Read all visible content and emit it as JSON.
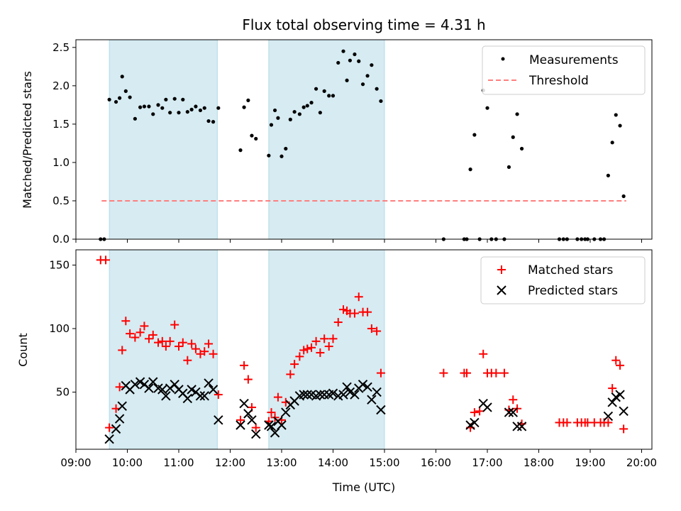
{
  "chart_data": [
    {
      "type": "scatter",
      "title": "Flux total observing time = 4.31 h",
      "xlabel": "",
      "ylabel": "Matched/Predicted stars",
      "xlim_hours": [
        9.0,
        20.2
      ],
      "ylim": [
        0,
        2.6
      ],
      "xticks": [
        9,
        10,
        11,
        12,
        13,
        14,
        15,
        16,
        17,
        18,
        19,
        20
      ],
      "yticks": [
        0.0,
        0.5,
        1.0,
        1.5,
        2.0,
        2.5
      ],
      "ytick_labels": [
        "0.0",
        "0.5",
        "1.0",
        "1.5",
        "2.0",
        "2.5"
      ],
      "shaded_intervals_hours": [
        [
          9.65,
          11.75
        ],
        [
          12.75,
          15.0
        ]
      ],
      "shade_color": "#add8e6",
      "legend_position": "top-right",
      "threshold": {
        "name": "Threshold",
        "value": 0.5,
        "x_hours": [
          9.5,
          19.7
        ],
        "color": "#ff7f7f"
      },
      "series": [
        {
          "name": "Measurements",
          "marker": "dot",
          "color": "#000000",
          "points": [
            [
              9.48,
              0.0
            ],
            [
              9.55,
              0.0
            ],
            [
              9.65,
              1.82
            ],
            [
              9.78,
              1.79
            ],
            [
              9.85,
              1.84
            ],
            [
              9.9,
              2.12
            ],
            [
              9.97,
              1.93
            ],
            [
              10.05,
              1.85
            ],
            [
              10.15,
              1.57
            ],
            [
              10.25,
              1.72
            ],
            [
              10.33,
              1.73
            ],
            [
              10.42,
              1.73
            ],
            [
              10.5,
              1.63
            ],
            [
              10.6,
              1.75
            ],
            [
              10.68,
              1.71
            ],
            [
              10.75,
              1.82
            ],
            [
              10.83,
              1.65
            ],
            [
              10.92,
              1.83
            ],
            [
              11.0,
              1.65
            ],
            [
              11.08,
              1.82
            ],
            [
              11.17,
              1.66
            ],
            [
              11.25,
              1.69
            ],
            [
              11.33,
              1.73
            ],
            [
              11.42,
              1.68
            ],
            [
              11.5,
              1.71
            ],
            [
              11.58,
              1.54
            ],
            [
              11.67,
              1.53
            ],
            [
              11.77,
              1.71
            ],
            [
              12.2,
              1.16
            ],
            [
              12.27,
              1.72
            ],
            [
              12.35,
              1.81
            ],
            [
              12.42,
              1.35
            ],
            [
              12.5,
              1.31
            ],
            [
              12.75,
              1.09
            ],
            [
              12.8,
              1.49
            ],
            [
              12.87,
              1.68
            ],
            [
              12.93,
              1.58
            ],
            [
              13.0,
              1.08
            ],
            [
              13.08,
              1.18
            ],
            [
              13.17,
              1.56
            ],
            [
              13.25,
              1.66
            ],
            [
              13.35,
              1.63
            ],
            [
              13.43,
              1.72
            ],
            [
              13.5,
              1.74
            ],
            [
              13.58,
              1.78
            ],
            [
              13.67,
              1.96
            ],
            [
              13.75,
              1.65
            ],
            [
              13.83,
              1.93
            ],
            [
              13.92,
              1.87
            ],
            [
              14.0,
              1.87
            ],
            [
              14.1,
              2.3
            ],
            [
              14.2,
              2.45
            ],
            [
              14.27,
              2.07
            ],
            [
              14.33,
              2.33
            ],
            [
              14.42,
              2.41
            ],
            [
              14.5,
              2.32
            ],
            [
              14.58,
              2.02
            ],
            [
              14.67,
              2.13
            ],
            [
              14.75,
              2.27
            ],
            [
              14.85,
              1.96
            ],
            [
              14.93,
              1.8
            ],
            [
              16.15,
              0.0
            ],
            [
              16.55,
              0.0
            ],
            [
              16.6,
              0.0
            ],
            [
              16.67,
              0.91
            ],
            [
              16.75,
              1.36
            ],
            [
              16.85,
              0.0
            ],
            [
              16.92,
              1.94
            ],
            [
              17.0,
              1.71
            ],
            [
              17.08,
              0.0
            ],
            [
              17.17,
              0.0
            ],
            [
              17.33,
              0.0
            ],
            [
              17.42,
              0.94
            ],
            [
              17.5,
              1.33
            ],
            [
              17.58,
              1.63
            ],
            [
              17.67,
              1.18
            ],
            [
              18.4,
              0.0
            ],
            [
              18.48,
              0.0
            ],
            [
              18.55,
              0.0
            ],
            [
              18.75,
              0.0
            ],
            [
              18.83,
              0.0
            ],
            [
              18.9,
              0.0
            ],
            [
              18.95,
              0.0
            ],
            [
              19.08,
              0.0
            ],
            [
              19.2,
              0.0
            ],
            [
              19.27,
              0.0
            ],
            [
              19.35,
              0.83
            ],
            [
              19.43,
              1.26
            ],
            [
              19.5,
              1.62
            ],
            [
              19.58,
              1.48
            ],
            [
              19.65,
              0.56
            ]
          ]
        }
      ]
    },
    {
      "type": "scatter",
      "title": "",
      "xlabel": "Time (UTC)",
      "ylabel": "Count",
      "xlim_hours": [
        9.0,
        20.2
      ],
      "ylim": [
        5,
        162
      ],
      "xticks": [
        9,
        10,
        11,
        12,
        13,
        14,
        15,
        16,
        17,
        18,
        19,
        20
      ],
      "xtick_labels": [
        "09:00",
        "10:00",
        "11:00",
        "12:00",
        "13:00",
        "14:00",
        "15:00",
        "16:00",
        "17:00",
        "18:00",
        "19:00",
        "20:00"
      ],
      "yticks": [
        50,
        100,
        150
      ],
      "ytick_labels": [
        "50",
        "100",
        "150"
      ],
      "shaded_intervals_hours": [
        [
          9.65,
          11.75
        ],
        [
          12.75,
          15.0
        ]
      ],
      "shade_color": "#add8e6",
      "legend_position": "top-right",
      "series": [
        {
          "name": "Matched stars",
          "marker": "plus",
          "color": "#ff0000",
          "points": [
            [
              9.48,
              154
            ],
            [
              9.58,
              154
            ],
            [
              9.65,
              22
            ],
            [
              9.78,
              37
            ],
            [
              9.85,
              54
            ],
            [
              9.9,
              83
            ],
            [
              9.97,
              106
            ],
            [
              10.05,
              96
            ],
            [
              10.15,
              93
            ],
            [
              10.25,
              97
            ],
            [
              10.33,
              102
            ],
            [
              10.42,
              92
            ],
            [
              10.5,
              95
            ],
            [
              10.6,
              89
            ],
            [
              10.68,
              90
            ],
            [
              10.75,
              86
            ],
            [
              10.83,
              90
            ],
            [
              10.92,
              103
            ],
            [
              11.0,
              86
            ],
            [
              11.08,
              89
            ],
            [
              11.17,
              75
            ],
            [
              11.25,
              88
            ],
            [
              11.33,
              84
            ],
            [
              11.42,
              80
            ],
            [
              11.5,
              82
            ],
            [
              11.58,
              88
            ],
            [
              11.67,
              80
            ],
            [
              11.77,
              48
            ],
            [
              12.2,
              28
            ],
            [
              12.27,
              71
            ],
            [
              12.35,
              60
            ],
            [
              12.42,
              38
            ],
            [
              12.5,
              22
            ],
            [
              12.75,
              27
            ],
            [
              12.8,
              34
            ],
            [
              12.87,
              30
            ],
            [
              12.93,
              46
            ],
            [
              13.0,
              28
            ],
            [
              13.08,
              42
            ],
            [
              13.17,
              64
            ],
            [
              13.25,
              72
            ],
            [
              13.35,
              78
            ],
            [
              13.43,
              83
            ],
            [
              13.5,
              84
            ],
            [
              13.58,
              85
            ],
            [
              13.67,
              90
            ],
            [
              13.75,
              81
            ],
            [
              13.83,
              92
            ],
            [
              13.92,
              86
            ],
            [
              14.0,
              92
            ],
            [
              14.1,
              105
            ],
            [
              14.2,
              115
            ],
            [
              14.27,
              114
            ],
            [
              14.33,
              112
            ],
            [
              14.42,
              112
            ],
            [
              14.5,
              125
            ],
            [
              14.58,
              113
            ],
            [
              14.67,
              113
            ],
            [
              14.75,
              100
            ],
            [
              14.85,
              98
            ],
            [
              14.93,
              65
            ],
            [
              16.15,
              65
            ],
            [
              16.55,
              65
            ],
            [
              16.6,
              65
            ],
            [
              16.67,
              22
            ],
            [
              16.75,
              34
            ],
            [
              16.85,
              35
            ],
            [
              16.92,
              80
            ],
            [
              17.0,
              65
            ],
            [
              17.08,
              65
            ],
            [
              17.17,
              65
            ],
            [
              17.33,
              65
            ],
            [
              17.42,
              36
            ],
            [
              17.5,
              44
            ],
            [
              17.58,
              37
            ],
            [
              17.67,
              25
            ],
            [
              18.4,
              26
            ],
            [
              18.48,
              26
            ],
            [
              18.55,
              26
            ],
            [
              18.75,
              26
            ],
            [
              18.83,
              26
            ],
            [
              18.9,
              26
            ],
            [
              18.95,
              26
            ],
            [
              19.08,
              26
            ],
            [
              19.2,
              26
            ],
            [
              19.27,
              26
            ],
            [
              19.35,
              26
            ],
            [
              19.43,
              53
            ],
            [
              19.5,
              75
            ],
            [
              19.58,
              71
            ],
            [
              19.65,
              21
            ]
          ]
        },
        {
          "name": "Predicted stars",
          "marker": "x",
          "color": "#000000",
          "points": [
            [
              9.65,
              13
            ],
            [
              9.78,
              21
            ],
            [
              9.85,
              29
            ],
            [
              9.9,
              39
            ],
            [
              9.97,
              55
            ],
            [
              10.05,
              52
            ],
            [
              10.15,
              56
            ],
            [
              10.25,
              58
            ],
            [
              10.33,
              56
            ],
            [
              10.42,
              53
            ],
            [
              10.5,
              58
            ],
            [
              10.6,
              53
            ],
            [
              10.68,
              52
            ],
            [
              10.75,
              47
            ],
            [
              10.83,
              53
            ],
            [
              10.92,
              56
            ],
            [
              11.0,
              52
            ],
            [
              11.08,
              49
            ],
            [
              11.17,
              45
            ],
            [
              11.25,
              52
            ],
            [
              11.33,
              50
            ],
            [
              11.42,
              47
            ],
            [
              11.5,
              47
            ],
            [
              11.58,
              57
            ],
            [
              11.67,
              52
            ],
            [
              11.77,
              28
            ],
            [
              12.2,
              24
            ],
            [
              12.27,
              41
            ],
            [
              12.35,
              33
            ],
            [
              12.42,
              28
            ],
            [
              12.5,
              17
            ],
            [
              12.75,
              24
            ],
            [
              12.8,
              23
            ],
            [
              12.87,
              18
            ],
            [
              12.93,
              27
            ],
            [
              13.0,
              24
            ],
            [
              13.08,
              34
            ],
            [
              13.17,
              40
            ],
            [
              13.25,
              43
            ],
            [
              13.35,
              47
            ],
            [
              13.43,
              48
            ],
            [
              13.5,
              48
            ],
            [
              13.58,
              48
            ],
            [
              13.67,
              47
            ],
            [
              13.75,
              48
            ],
            [
              13.83,
              48
            ],
            [
              13.92,
              48
            ],
            [
              14.0,
              49
            ],
            [
              14.1,
              47
            ],
            [
              14.2,
              48
            ],
            [
              14.27,
              54
            ],
            [
              14.33,
              50
            ],
            [
              14.42,
              48
            ],
            [
              14.5,
              53
            ],
            [
              14.58,
              56
            ],
            [
              14.67,
              54
            ],
            [
              14.75,
              44
            ],
            [
              14.85,
              50
            ],
            [
              14.93,
              36
            ],
            [
              16.67,
              24
            ],
            [
              16.75,
              26
            ],
            [
              16.92,
              41
            ],
            [
              17.0,
              38
            ],
            [
              17.42,
              34
            ],
            [
              17.5,
              34
            ],
            [
              17.58,
              23
            ],
            [
              17.67,
              23
            ],
            [
              19.35,
              31
            ],
            [
              19.43,
              42
            ],
            [
              19.5,
              46
            ],
            [
              19.58,
              48
            ],
            [
              19.65,
              35
            ]
          ]
        }
      ]
    }
  ]
}
